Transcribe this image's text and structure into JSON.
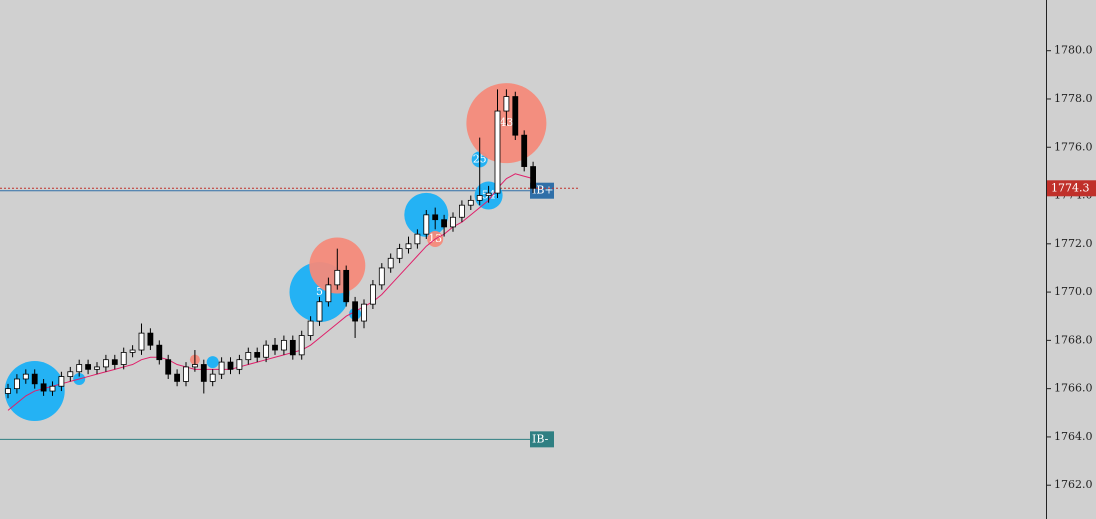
{
  "chart_data": {
    "type": "candlestick",
    "ylim": [
      1760.6,
      1782.1
    ],
    "yticks": [
      {
        "value": 1762,
        "label": "1762.0"
      },
      {
        "value": 1764,
        "label": "1764.0"
      },
      {
        "value": 1766,
        "label": "1766.0"
      },
      {
        "value": 1768,
        "label": "1768.0"
      },
      {
        "value": 1770,
        "label": "1770.0"
      },
      {
        "value": 1772,
        "label": "1772.0"
      },
      {
        "value": 1774,
        "label": "1774.0"
      },
      {
        "value": 1776,
        "label": "1776.0"
      },
      {
        "value": 1778,
        "label": "1778.0"
      },
      {
        "value": 1780,
        "label": "1780.0"
      }
    ],
    "open": [
      1765.8,
      1766.0,
      1766.4,
      1766.6,
      1766.2,
      1765.9,
      1766.1,
      1766.5,
      1766.7,
      1767.0,
      1766.8,
      1766.9,
      1767.2,
      1767.0,
      1767.5,
      1767.6,
      1768.3,
      1767.8,
      1767.2,
      1766.6,
      1766.3,
      1766.9,
      1767.0,
      1766.3,
      1766.6,
      1767.1,
      1766.8,
      1767.2,
      1767.5,
      1767.3,
      1767.8,
      1767.6,
      1768.0,
      1767.4,
      1768.2,
      1768.8,
      1769.6,
      1770.3,
      1770.9,
      1769.6,
      1768.8,
      1769.5,
      1770.3,
      1771.0,
      1771.4,
      1771.8,
      1772.0,
      1772.4,
      1773.2,
      1773.0,
      1772.7,
      1773.1,
      1773.6,
      1773.8,
      1774.0,
      1774.1,
      1777.5,
      1778.1,
      1776.5,
      1775.2
    ],
    "high": [
      1766.2,
      1766.6,
      1766.8,
      1766.8,
      1766.4,
      1766.3,
      1766.7,
      1766.9,
      1767.2,
      1767.2,
      1767.1,
      1767.4,
      1767.4,
      1767.7,
      1767.8,
      1768.7,
      1768.5,
      1768.0,
      1767.4,
      1766.8,
      1767.1,
      1767.6,
      1767.2,
      1766.8,
      1767.3,
      1767.3,
      1767.4,
      1767.7,
      1767.7,
      1768.0,
      1768.1,
      1768.2,
      1768.2,
      1768.4,
      1769.0,
      1769.8,
      1770.6,
      1771.8,
      1771.1,
      1769.8,
      1769.7,
      1770.5,
      1771.2,
      1771.6,
      1772.0,
      1772.3,
      1772.6,
      1773.4,
      1773.5,
      1773.2,
      1773.3,
      1773.8,
      1774.0,
      1776.4,
      1774.4,
      1778.4,
      1778.4,
      1778.3,
      1776.7,
      1775.4
    ],
    "low": [
      1765.6,
      1765.8,
      1766.2,
      1766.0,
      1765.7,
      1765.7,
      1765.9,
      1766.3,
      1766.5,
      1766.6,
      1766.6,
      1766.7,
      1766.8,
      1766.8,
      1767.3,
      1767.4,
      1767.6,
      1767.0,
      1766.4,
      1766.1,
      1766.1,
      1766.7,
      1765.8,
      1766.1,
      1766.4,
      1766.6,
      1766.6,
      1767.0,
      1767.1,
      1767.1,
      1767.4,
      1767.4,
      1767.2,
      1767.2,
      1768.0,
      1768.6,
      1769.4,
      1770.1,
      1769.4,
      1768.1,
      1768.5,
      1769.3,
      1770.1,
      1770.8,
      1771.2,
      1771.6,
      1771.8,
      1772.2,
      1772.6,
      1772.3,
      1772.5,
      1772.9,
      1773.4,
      1773.6,
      1773.7,
      1773.9,
      1776.9,
      1776.3,
      1775.0,
      1774.1
    ],
    "close": [
      1766.0,
      1766.4,
      1766.6,
      1766.2,
      1765.9,
      1766.1,
      1766.5,
      1766.7,
      1767.0,
      1766.8,
      1766.9,
      1767.2,
      1767.0,
      1767.5,
      1767.6,
      1768.3,
      1767.8,
      1767.2,
      1766.6,
      1766.3,
      1766.9,
      1767.0,
      1766.3,
      1766.6,
      1767.1,
      1766.8,
      1767.2,
      1767.5,
      1767.3,
      1767.8,
      1767.6,
      1768.0,
      1767.4,
      1768.2,
      1768.8,
      1769.6,
      1770.3,
      1770.9,
      1769.6,
      1768.8,
      1769.5,
      1770.3,
      1771.0,
      1771.4,
      1771.8,
      1772.0,
      1772.4,
      1773.2,
      1773.0,
      1772.7,
      1773.1,
      1773.6,
      1773.8,
      1774.0,
      1774.1,
      1777.5,
      1778.1,
      1776.5,
      1775.2,
      1774.3
    ],
    "moving_average": {
      "color": "#e0206a",
      "values": [
        1765.1,
        1765.4,
        1765.7,
        1765.9,
        1766.0,
        1766.1,
        1766.2,
        1766.3,
        1766.4,
        1766.5,
        1766.6,
        1766.7,
        1766.8,
        1766.9,
        1767.0,
        1767.2,
        1767.3,
        1767.3,
        1767.2,
        1767.0,
        1766.9,
        1766.8,
        1766.8,
        1766.8,
        1766.8,
        1766.8,
        1766.9,
        1767.0,
        1767.1,
        1767.2,
        1767.3,
        1767.4,
        1767.5,
        1767.6,
        1767.8,
        1768.1,
        1768.4,
        1768.7,
        1769.0,
        1769.2,
        1769.4,
        1769.6,
        1769.9,
        1770.3,
        1770.7,
        1771.1,
        1771.5,
        1771.9,
        1772.2,
        1772.4,
        1772.7,
        1772.9,
        1773.2,
        1773.5,
        1773.8,
        1774.3,
        1774.7,
        1774.9,
        1774.8,
        1774.7
      ]
    },
    "bubbles": [
      {
        "index": 3,
        "price": 1765.9,
        "volume": 30,
        "color": "#1ab0f5"
      },
      {
        "index": 8,
        "price": 1766.4,
        "volume": 6,
        "color": "#1ab0f5"
      },
      {
        "index": 21,
        "price": 1767.2,
        "volume": 5,
        "color": "#f48a7a"
      },
      {
        "index": 23,
        "price": 1767.1,
        "volume": 6,
        "color": "#1ab0f5"
      },
      {
        "index": 35,
        "price": 1770.0,
        "volume": 30,
        "color": "#1ab0f5",
        "label": "5"
      },
      {
        "index": 37,
        "price": 1771.1,
        "volume": 28,
        "color": "#f48a7a"
      },
      {
        "index": 39,
        "price": 1769.1,
        "volume": 6,
        "color": "#1ab0f5"
      },
      {
        "index": 47,
        "price": 1773.2,
        "volume": 22,
        "color": "#1ab0f5"
      },
      {
        "index": 48,
        "price": 1772.2,
        "volume": 8,
        "color": "#f48a7a",
        "label": "13"
      },
      {
        "index": 53,
        "price": 1775.5,
        "volume": 8,
        "color": "#1ab0f5",
        "label": "25"
      },
      {
        "index": 54,
        "price": 1774.0,
        "volume": 14,
        "color": "#1ab0f5",
        "label": "54"
      },
      {
        "index": 56,
        "price": 1777.0,
        "volume": 40,
        "color": "#f48a7a",
        "label": "43"
      }
    ],
    "levels": [
      {
        "label": "IB+",
        "price": 1774.2,
        "color": "#2f6fa8"
      },
      {
        "label": "IB-",
        "price": 1763.9,
        "color": "#2f7f82"
      }
    ],
    "current_price": 1774.3,
    "current_price_color": "#c0302a"
  }
}
